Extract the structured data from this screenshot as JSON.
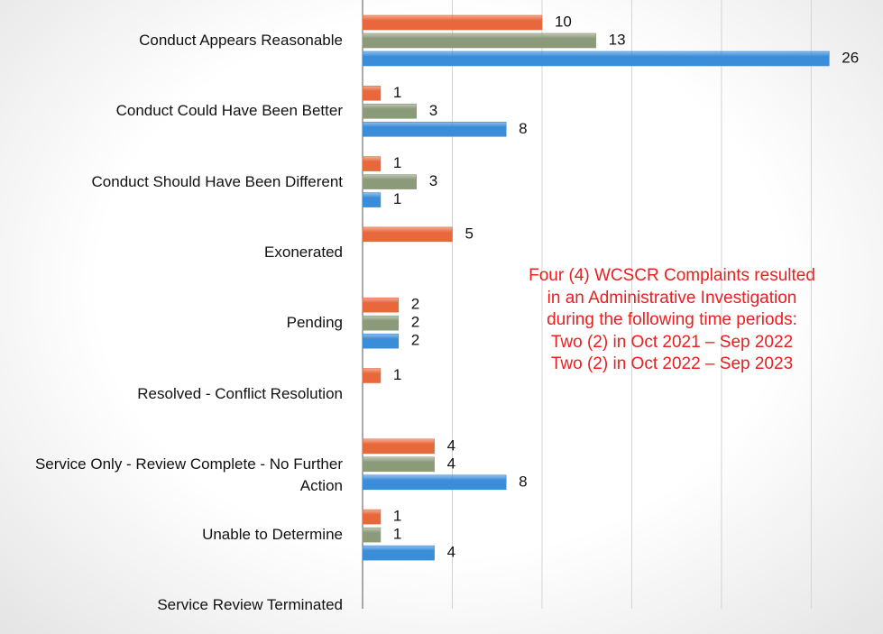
{
  "chart_data": {
    "type": "hbar",
    "categories": [
      "Conduct Appears Reasonable",
      "Conduct Could Have Been Better",
      "Conduct Should Have Been Different",
      "Exonerated",
      "Pending",
      "Resolved - Conflict Resolution",
      "Service Only - Review Complete - No Further Action",
      "Unable to Determine",
      "Service Review Terminated"
    ],
    "series": [
      {
        "color": "#e8683c",
        "values": [
          10,
          1,
          1,
          5,
          2,
          1,
          4,
          1,
          null
        ]
      },
      {
        "color": "#8b9a79",
        "values": [
          13,
          3,
          3,
          null,
          2,
          null,
          4,
          1,
          null
        ]
      },
      {
        "color": "#3a8dd9",
        "values": [
          26,
          8,
          1,
          null,
          2,
          null,
          8,
          4,
          null
        ]
      }
    ],
    "xlim": [
      0,
      29
    ],
    "xticks": [
      0,
      5,
      10,
      15,
      20,
      25
    ],
    "grid": true,
    "annotation": [
      "Four (4) WCSCR Complaints resulted",
      "in an Administrative Investigation",
      "during the following time periods:",
      "Two (2) in Oct 2021 – Sep 2022",
      "Two (2) in Oct 2022 – Sep 2023"
    ],
    "annotation_color": "#e8201e"
  }
}
